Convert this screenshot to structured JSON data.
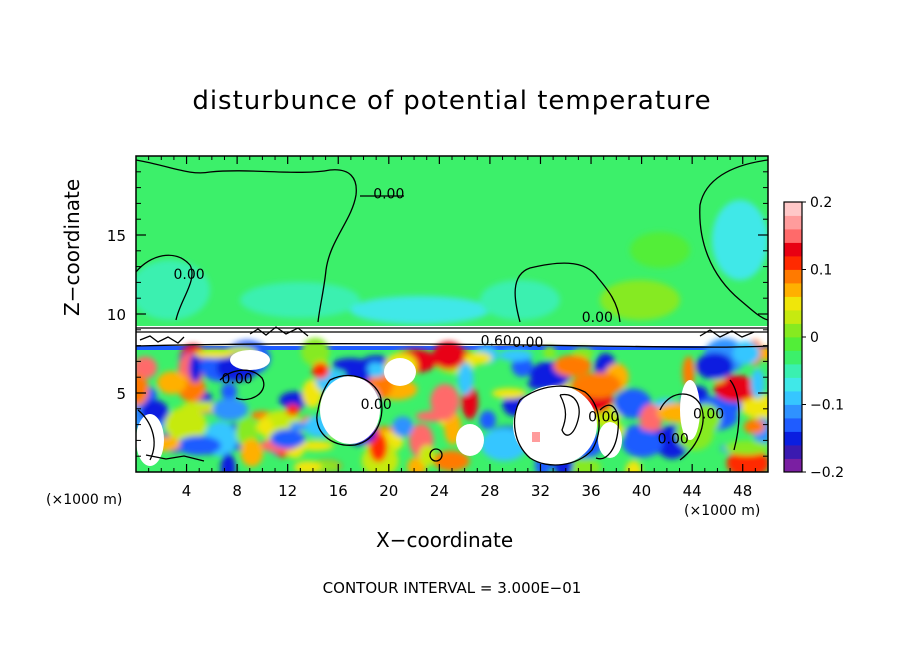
{
  "chart_data": {
    "type": "heatmap",
    "title": "disturbunce of potential temperature",
    "xlabel": "X−coordinate",
    "ylabel": "Z−coordinate",
    "x_unit_left": "(×1000 m)",
    "x_unit_right": "(×1000 m)",
    "footer": "CONTOUR INTERVAL = 3.000E−01",
    "xlim": [
      0,
      50
    ],
    "ylim": [
      0,
      20
    ],
    "x_ticks": [
      4,
      8,
      12,
      16,
      20,
      24,
      28,
      32,
      36,
      40,
      44,
      48
    ],
    "y_ticks": [
      5,
      10,
      15
    ],
    "colorbar": {
      "range": [
        -0.2,
        0.2
      ],
      "tick_values": [
        0.2,
        0.1,
        0,
        -0.1,
        -0.2
      ],
      "tick_labels": [
        "0.2",
        "0.1",
        "0",
        "−0.1",
        "−0.2"
      ],
      "colors": [
        "#7a1fa2",
        "#3a1ab0",
        "#0a1ee0",
        "#1f5cff",
        "#2f92ff",
        "#36c6ff",
        "#40e8e8",
        "#3af0b0",
        "#3cf06a",
        "#52ee38",
        "#86ea20",
        "#c6ea10",
        "#f0e60a",
        "#ffb000",
        "#ff7a00",
        "#ff2a00",
        "#e80012",
        "#ff6a6a",
        "#ff9c9c",
        "#ffc8c8"
      ]
    },
    "contour_labels": [
      {
        "text": "0.00",
        "x": 20,
        "z": 17.3
      },
      {
        "text": "0.00",
        "x": 4.2,
        "z": 12.2
      },
      {
        "text": "0.00",
        "x": 36.5,
        "z": 9.5
      },
      {
        "text": "0.60",
        "x": 28.5,
        "z": 8.0
      },
      {
        "text": "0.00",
        "x": 31.0,
        "z": 7.9
      },
      {
        "text": "0.00",
        "x": 8.0,
        "z": 5.6
      },
      {
        "text": "0.00",
        "x": 19.0,
        "z": 4.0
      },
      {
        "text": "0.00",
        "x": 37.0,
        "z": 3.2
      },
      {
        "text": "0.00",
        "x": 42.5,
        "z": 1.8
      },
      {
        "text": "0.00",
        "x": 45.3,
        "z": 3.4
      }
    ]
  }
}
